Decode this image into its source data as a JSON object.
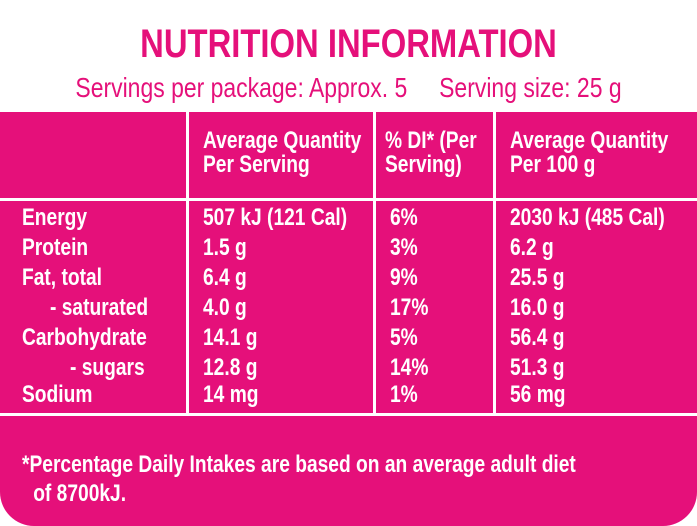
{
  "title": "NUTRITION INFORMATION",
  "servings_line": "Servings per package: Approx. 5     Serving size: 25 g",
  "columns": [
    {
      "line1": "Average Quantity",
      "line2": "Per Serving"
    },
    {
      "line1": "% DI* (Per",
      "line2": "Serving)"
    },
    {
      "line1": "Average Quantity",
      "line2": "Per 100 g"
    }
  ],
  "rows": [
    {
      "name": "Energy",
      "per_serving": "507 kJ (121 Cal)",
      "di": "6%",
      "per_100g": "2030 kJ (485 Cal)"
    },
    {
      "name": "Protein",
      "per_serving": "1.5 g",
      "di": "3%",
      "per_100g": "6.2 g"
    },
    {
      "name": "Fat, total",
      "per_serving": "6.4 g",
      "di": "9%",
      "per_100g": "25.5 g"
    },
    {
      "name": "- saturated",
      "per_serving": "4.0 g",
      "di": "17%",
      "per_100g": "16.0 g"
    },
    {
      "name": "Carbohydrate",
      "per_serving": "14.1 g",
      "di": "5%",
      "per_100g": "56.4 g"
    },
    {
      "name": "- sugars",
      "per_serving": "12.8 g",
      "di": "14%",
      "per_100g": "51.3 g"
    },
    {
      "name": "Sodium",
      "per_serving": "14 mg",
      "di": "1%",
      "per_100g": "56 mg"
    }
  ],
  "footnote_line1": "*Percentage Daily Intakes are based on an average adult diet",
  "footnote_line2": "of 8700kJ.",
  "colors": {
    "brand_pink": "#e5107a",
    "text_on_pink": "#ffffff"
  }
}
